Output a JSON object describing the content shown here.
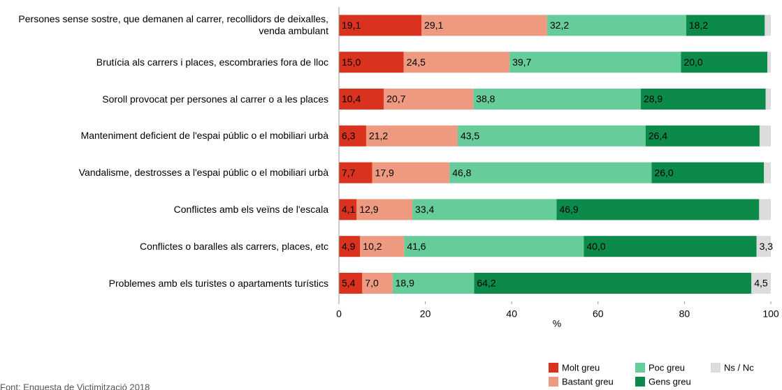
{
  "chart_data": {
    "type": "stacked_barh",
    "categories": [
      "Persones sense sostre, que demanen al carrer, recollidors de deixalles, venda ambulant",
      "Brutícia als carrers i places, escombraries fora de lloc",
      "Soroll provocat per persones al carrer o a les places",
      "Manteniment deficient de l'espai públic o el mobiliari urbà",
      "Vandalisme, destrosses a l'espai públic o el mobiliari urbà",
      "Conflictes amb els veïns de l'escala",
      "Conflictes o baralles als carrers, places, etc",
      "Problemes amb els turistes o apartaments turístics"
    ],
    "series": [
      {
        "name": "Molt greu",
        "color": "#d9321f",
        "label_color": "#ffffff",
        "values": [
          19.1,
          15.0,
          10.4,
          6.3,
          7.7,
          4.1,
          4.9,
          5.4
        ],
        "value_labels": [
          "19,1",
          "15,0",
          "10,4",
          "6,3",
          "7,7",
          "4,1",
          "4,9",
          "5,4"
        ]
      },
      {
        "name": "Bastant greu",
        "color": "#ee9a80",
        "label_color": "#000000",
        "values": [
          29.1,
          24.5,
          20.7,
          21.2,
          17.9,
          12.9,
          10.2,
          7.0
        ],
        "value_labels": [
          "29,1",
          "24,5",
          "20,7",
          "21,2",
          "17,9",
          "12,9",
          "10,2",
          "7,0"
        ]
      },
      {
        "name": "Poc greu",
        "color": "#66cc99",
        "label_color": "#000000",
        "values": [
          32.2,
          39.7,
          38.8,
          43.5,
          46.8,
          33.4,
          41.6,
          18.9
        ],
        "value_labels": [
          "32,2",
          "39,7",
          "38,8",
          "43,5",
          "46,8",
          "33,4",
          "41,6",
          "18,9"
        ]
      },
      {
        "name": "Gens greu",
        "color": "#0b8a4a",
        "label_color": "#ffffff",
        "values": [
          18.2,
          20.0,
          28.9,
          26.4,
          26.0,
          46.9,
          40.0,
          64.2
        ],
        "value_labels": [
          "18,2",
          "20,0",
          "28,9",
          "26,4",
          "26,0",
          "46,9",
          "40,0",
          "64,2"
        ]
      },
      {
        "name": "Ns / Nc",
        "color": "#dcdcdc",
        "label_color": "#000000",
        "values": [
          1.4,
          0.8,
          1.2,
          2.6,
          1.6,
          2.7,
          3.3,
          4.5
        ],
        "value_labels": [
          null,
          null,
          null,
          null,
          null,
          null,
          "3,3",
          "4,5"
        ]
      }
    ],
    "xlabel": "%",
    "xlim": [
      0,
      100
    ],
    "xticks": [
      0,
      20,
      40,
      60,
      80,
      100
    ],
    "legend_position": "bottom-right",
    "source": "Font: Enquesta de Victimització 2018"
  }
}
